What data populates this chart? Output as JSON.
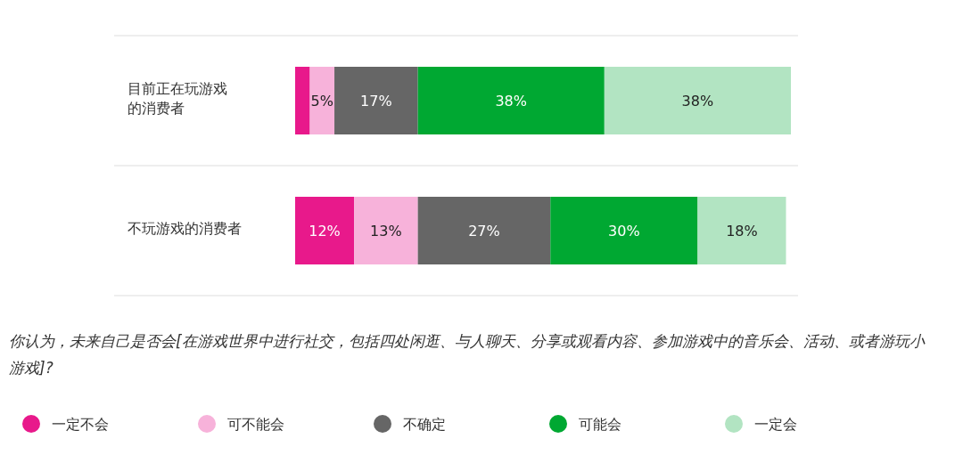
{
  "chart_data": {
    "type": "bar",
    "orientation": "horizontal",
    "stacked": true,
    "legend": "bottom",
    "categories": [
      "目前正在玩游戏的消费者",
      "不玩游戏的消费者"
    ],
    "series": [
      {
        "name": "一定不会",
        "color": "#e8198b",
        "values": [
          3,
          12
        ],
        "value_labels": [
          null,
          "12%"
        ]
      },
      {
        "name": "可不能会",
        "color": "#f7b2da",
        "values": [
          5,
          13
        ],
        "value_labels": [
          "5%",
          "13%"
        ]
      },
      {
        "name": "不确定",
        "color": "#666666",
        "values": [
          17,
          27
        ],
        "value_labels": [
          "17%",
          "27%"
        ]
      },
      {
        "name": "可能会",
        "color": "#00a832",
        "values": [
          38,
          30
        ],
        "value_labels": [
          "38%",
          "30%"
        ]
      },
      {
        "name": "一定会",
        "color": "#b2e4c2",
        "values": [
          38,
          18
        ],
        "value_labels": [
          "38%",
          "18%"
        ]
      }
    ],
    "annotations": [
      "你认为，未来自己是否会[在游戏世界中进行社交，包括四处闲逛、与人聊天、分享或观看内容、参加游戏中的音乐会、活动、或者游玩小游戏]?"
    ]
  }
}
